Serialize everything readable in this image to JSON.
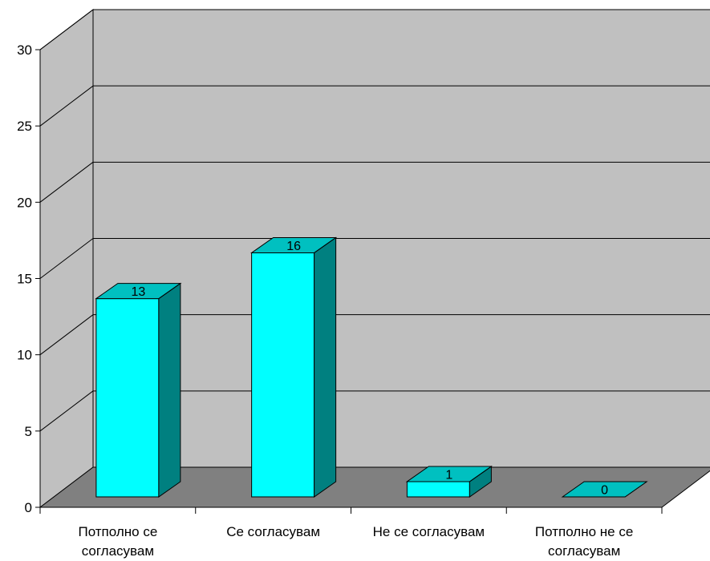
{
  "chart_data": {
    "type": "bar",
    "title": "",
    "xlabel": "",
    "ylabel": "",
    "categories": [
      [
        "Потполно се",
        "согласувам"
      ],
      [
        "Се согласувам"
      ],
      [
        "Не се согласувам"
      ],
      [
        "Потполно не се",
        "согласувам"
      ]
    ],
    "values": [
      13,
      16,
      1,
      0
    ],
    "data_labels": [
      "13",
      "16",
      "1",
      "0"
    ],
    "ylim": [
      0,
      30
    ],
    "yticks": [
      0,
      5,
      10,
      15,
      20,
      25,
      30
    ],
    "ytick_labels": [
      "0",
      "5",
      "10",
      "15",
      "20",
      "25",
      "30"
    ],
    "grid": true,
    "three_d": true,
    "legend": "none",
    "colors": {
      "bar_front": "#00ffff",
      "bar_side": "#008080",
      "bar_top": "#00c0c0",
      "back_wall": "#c0c0c0",
      "side_wall": "#c0c0c0",
      "floor": "#808080"
    }
  }
}
